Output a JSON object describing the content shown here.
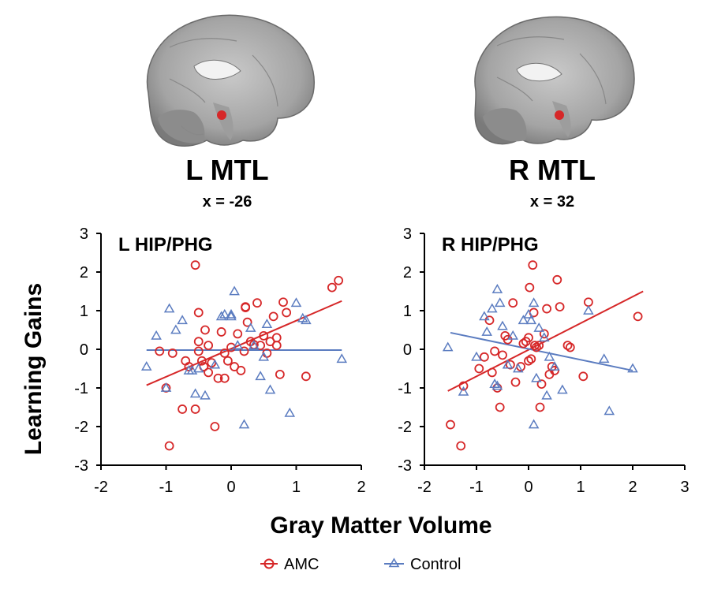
{
  "brains": [
    {
      "title": "L MTL",
      "coord": "x = -26"
    },
    {
      "title": "R MTL",
      "coord": "x = 32"
    }
  ],
  "colors": {
    "amc": "#d62728",
    "control": "#5b7cc0",
    "axis": "#000000"
  },
  "legend": [
    {
      "label": "AMC",
      "marker": "circle"
    },
    {
      "label": "Control",
      "marker": "triangle"
    }
  ],
  "chart_data": [
    {
      "type": "scatter",
      "title": "L HIP/PHG",
      "xlabel": "Gray Matter Volume",
      "ylabel": "Learning Gains",
      "xlim": [
        -2,
        2
      ],
      "ylim": [
        -3,
        3
      ],
      "xticks": [
        "-2",
        "-1",
        "0",
        "1",
        "2"
      ],
      "yticks": [
        "3",
        "2",
        "1",
        "0",
        "-1",
        "-2",
        "-3"
      ],
      "series": [
        {
          "name": "AMC",
          "marker": "circle",
          "points": [
            [
              -0.55,
              2.18
            ],
            [
              -0.5,
              0.95
            ],
            [
              -0.5,
              0.2
            ],
            [
              -0.5,
              -0.05
            ],
            [
              -0.45,
              -0.3
            ],
            [
              -0.42,
              -0.45
            ],
            [
              -0.4,
              0.5
            ],
            [
              -0.35,
              -0.6
            ],
            [
              -0.3,
              -0.35
            ],
            [
              -0.25,
              -2.0
            ],
            [
              -0.2,
              -0.75
            ],
            [
              -0.15,
              0.45
            ],
            [
              -0.1,
              -0.1
            ],
            [
              -0.05,
              -0.3
            ],
            [
              0.0,
              0.05
            ],
            [
              0.05,
              -0.45
            ],
            [
              0.1,
              0.4
            ],
            [
              0.15,
              -0.55
            ],
            [
              0.2,
              -0.05
            ],
            [
              0.22,
              1.1
            ],
            [
              0.25,
              0.7
            ],
            [
              0.3,
              0.2
            ],
            [
              0.35,
              0.12
            ],
            [
              0.4,
              1.2
            ],
            [
              0.45,
              0.1
            ],
            [
              0.5,
              0.35
            ],
            [
              0.55,
              -0.1
            ],
            [
              0.6,
              0.2
            ],
            [
              0.65,
              0.85
            ],
            [
              0.7,
              0.3
            ],
            [
              0.75,
              -0.65
            ],
            [
              0.8,
              1.22
            ],
            [
              0.85,
              0.95
            ],
            [
              1.15,
              -0.7
            ],
            [
              1.55,
              1.6
            ],
            [
              1.65,
              1.78
            ],
            [
              -0.95,
              -2.5
            ],
            [
              -0.75,
              -1.55
            ],
            [
              -0.65,
              -0.45
            ],
            [
              -0.55,
              -1.55
            ],
            [
              -1.0,
              -1.0
            ],
            [
              -1.1,
              -0.05
            ],
            [
              -0.9,
              -0.1
            ],
            [
              -0.7,
              -0.3
            ],
            [
              -0.35,
              0.1
            ],
            [
              0.22,
              1.08
            ],
            [
              -0.1,
              -0.75
            ],
            [
              0.7,
              0.1
            ]
          ]
        },
        {
          "name": "Control",
          "marker": "triangle",
          "points": [
            [
              -1.3,
              -0.45
            ],
            [
              -1.15,
              0.35
            ],
            [
              -0.95,
              1.05
            ],
            [
              -0.85,
              0.5
            ],
            [
              -0.75,
              0.75
            ],
            [
              -0.6,
              -0.55
            ],
            [
              -0.55,
              -1.15
            ],
            [
              -0.5,
              -0.5
            ],
            [
              -0.4,
              -1.2
            ],
            [
              -0.25,
              -0.4
            ],
            [
              -0.15,
              0.85
            ],
            [
              -0.1,
              0.9
            ],
            [
              0.0,
              0.9
            ],
            [
              0.0,
              0.85
            ],
            [
              0.05,
              1.5
            ],
            [
              0.1,
              0.1
            ],
            [
              0.2,
              -1.95
            ],
            [
              0.3,
              0.55
            ],
            [
              0.35,
              0.1
            ],
            [
              0.45,
              -0.7
            ],
            [
              0.5,
              -0.2
            ],
            [
              0.55,
              0.65
            ],
            [
              0.6,
              -1.05
            ],
            [
              0.9,
              -1.65
            ],
            [
              1.0,
              1.2
            ],
            [
              1.1,
              0.8
            ],
            [
              1.15,
              0.75
            ],
            [
              1.7,
              -0.25
            ],
            [
              -1.0,
              -1.0
            ],
            [
              -0.65,
              -0.55
            ]
          ]
        }
      ],
      "fits": [
        {
          "name": "AMC",
          "x": [
            -1.3,
            1.7
          ],
          "y": [
            -0.93,
            1.25
          ]
        },
        {
          "name": "Control",
          "x": [
            -1.3,
            1.7
          ],
          "y": [
            -0.02,
            -0.02
          ]
        }
      ]
    },
    {
      "type": "scatter",
      "title": "R HIP/PHG",
      "xlabel": "Gray Matter Volume",
      "ylabel": "Learning Gains",
      "xlim": [
        -2,
        3
      ],
      "ylim": [
        -3,
        3
      ],
      "xticks": [
        "-2",
        "-1",
        "0",
        "1",
        "2",
        "3"
      ],
      "yticks": [
        "3",
        "2",
        "1",
        "0",
        "-1",
        "-2",
        "-3"
      ],
      "series": [
        {
          "name": "AMC",
          "marker": "circle",
          "points": [
            [
              -1.5,
              -1.95
            ],
            [
              -1.3,
              -2.5
            ],
            [
              -1.25,
              -0.95
            ],
            [
              -0.95,
              -0.5
            ],
            [
              -0.85,
              -0.2
            ],
            [
              -0.75,
              0.75
            ],
            [
              -0.7,
              -0.6
            ],
            [
              -0.65,
              -0.05
            ],
            [
              -0.6,
              -1.0
            ],
            [
              -0.55,
              -1.5
            ],
            [
              -0.5,
              -0.15
            ],
            [
              -0.45,
              0.35
            ],
            [
              -0.4,
              0.25
            ],
            [
              -0.3,
              1.2
            ],
            [
              -0.25,
              -0.85
            ],
            [
              -0.15,
              -0.45
            ],
            [
              -0.1,
              0.15
            ],
            [
              -0.05,
              0.2
            ],
            [
              0.0,
              0.3
            ],
            [
              0.02,
              1.6
            ],
            [
              0.05,
              -0.25
            ],
            [
              0.08,
              2.18
            ],
            [
              0.1,
              0.95
            ],
            [
              0.15,
              0.05
            ],
            [
              0.2,
              0.1
            ],
            [
              0.22,
              -1.5
            ],
            [
              0.25,
              -0.9
            ],
            [
              0.3,
              0.4
            ],
            [
              0.35,
              1.05
            ],
            [
              0.4,
              -0.65
            ],
            [
              0.45,
              -0.45
            ],
            [
              0.5,
              -0.55
            ],
            [
              0.55,
              1.8
            ],
            [
              0.6,
              1.1
            ],
            [
              0.75,
              0.1
            ],
            [
              0.8,
              0.05
            ],
            [
              1.05,
              -0.7
            ],
            [
              1.15,
              1.22
            ],
            [
              2.1,
              0.85
            ],
            [
              0.0,
              -0.3
            ],
            [
              -0.35,
              -0.4
            ],
            [
              0.12,
              0.1
            ]
          ]
        },
        {
          "name": "Control",
          "marker": "triangle",
          "points": [
            [
              -1.55,
              0.05
            ],
            [
              -1.25,
              -1.1
            ],
            [
              -1.0,
              -0.2
            ],
            [
              -0.85,
              0.85
            ],
            [
              -0.8,
              0.45
            ],
            [
              -0.7,
              1.05
            ],
            [
              -0.65,
              -0.9
            ],
            [
              -0.6,
              1.55
            ],
            [
              -0.55,
              1.2
            ],
            [
              -0.5,
              0.6
            ],
            [
              -0.4,
              -0.4
            ],
            [
              -0.3,
              0.35
            ],
            [
              -0.2,
              -0.5
            ],
            [
              -0.1,
              0.75
            ],
            [
              0.0,
              0.9
            ],
            [
              0.05,
              0.75
            ],
            [
              0.1,
              1.2
            ],
            [
              0.1,
              -1.95
            ],
            [
              0.15,
              -0.75
            ],
            [
              0.2,
              0.55
            ],
            [
              0.3,
              0.3
            ],
            [
              0.35,
              -1.2
            ],
            [
              0.5,
              -0.45
            ],
            [
              0.65,
              -1.05
            ],
            [
              1.15,
              1.0
            ],
            [
              1.45,
              -0.25
            ],
            [
              1.55,
              -1.6
            ],
            [
              2.0,
              -0.5
            ],
            [
              -0.6,
              -0.95
            ],
            [
              0.4,
              -0.2
            ]
          ]
        }
      ],
      "fits": [
        {
          "name": "AMC",
          "x": [
            -1.55,
            2.2
          ],
          "y": [
            -1.08,
            1.5
          ]
        },
        {
          "name": "Control",
          "x": [
            -1.5,
            2.0
          ],
          "y": [
            0.43,
            -0.55
          ]
        }
      ]
    }
  ]
}
